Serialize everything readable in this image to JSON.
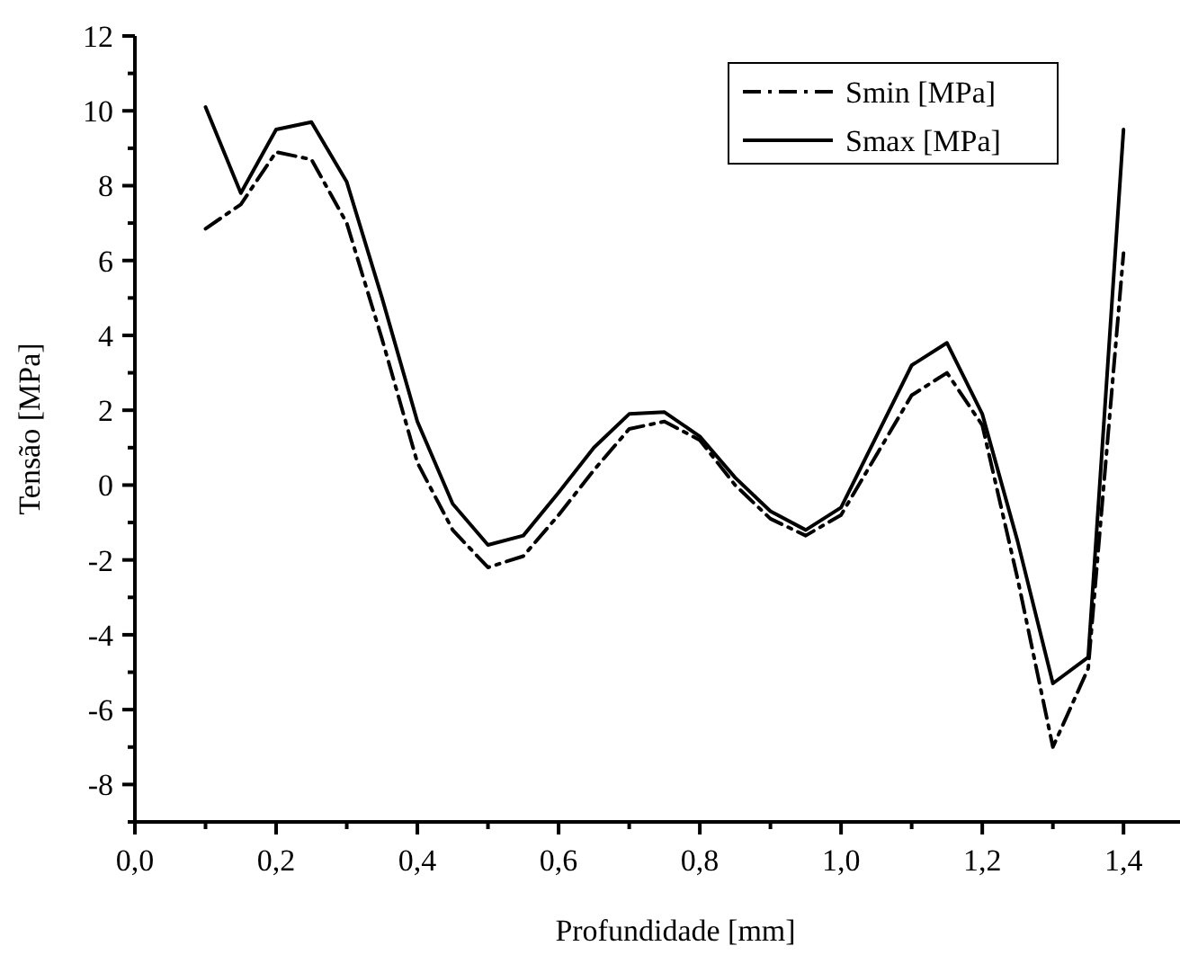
{
  "chart_data": {
    "type": "line",
    "xlabel": "Profundidade [mm]",
    "ylabel": "Tensão [MPa]",
    "xlim": [
      0,
      1.48
    ],
    "ylim": [
      -9,
      12
    ],
    "xticks": [
      {
        "value": 0,
        "label": "0,0"
      },
      {
        "value": 0.1,
        "label": null
      },
      {
        "value": 0.2,
        "label": "0,2"
      },
      {
        "value": 0.3,
        "label": null
      },
      {
        "value": 0.4,
        "label": "0,4"
      },
      {
        "value": 0.5,
        "label": null
      },
      {
        "value": 0.6,
        "label": "0,6"
      },
      {
        "value": 0.7,
        "label": null
      },
      {
        "value": 0.8,
        "label": "0,8"
      },
      {
        "value": 0.9,
        "label": null
      },
      {
        "value": 1.0,
        "label": "1,0"
      },
      {
        "value": 1.1,
        "label": null
      },
      {
        "value": 1.2,
        "label": "1,2"
      },
      {
        "value": 1.3,
        "label": null
      },
      {
        "value": 1.4,
        "label": "1,4"
      }
    ],
    "yticks": [
      {
        "value": -9,
        "label": null
      },
      -8,
      {
        "value": -7,
        "label": null
      },
      -6,
      {
        "value": -5,
        "label": null
      },
      -4,
      {
        "value": -3,
        "label": null
      },
      -2,
      {
        "value": -1,
        "label": null
      },
      0,
      {
        "value": 1,
        "label": null
      },
      2,
      {
        "value": 3,
        "label": null
      },
      4,
      {
        "value": 5,
        "label": null
      },
      6,
      {
        "value": 7,
        "label": null
      },
      8,
      {
        "value": 9,
        "label": null
      },
      10,
      {
        "value": 11,
        "label": null
      },
      12
    ],
    "x": [
      0.1,
      0.15,
      0.2,
      0.25,
      0.3,
      0.35,
      0.4,
      0.45,
      0.5,
      0.55,
      0.6,
      0.65,
      0.7,
      0.75,
      0.8,
      0.85,
      0.9,
      0.95,
      1.0,
      1.05,
      1.1,
      1.15,
      1.2,
      1.25,
      1.3,
      1.35,
      1.4
    ],
    "legend": "top right",
    "grid": false,
    "marker": "none",
    "series": [
      {
        "name": "Smin [MPa]",
        "color": "#000000",
        "line_style": "dashdot",
        "values": [
          6.85,
          7.5,
          8.9,
          8.7,
          7.0,
          3.9,
          0.6,
          -1.2,
          -2.2,
          -1.9,
          -0.8,
          0.4,
          1.5,
          1.7,
          1.2,
          0.0,
          -0.9,
          -1.35,
          -0.8,
          0.8,
          2.4,
          3.0,
          1.6,
          -2.5,
          -7.0,
          -4.9,
          6.2
        ]
      },
      {
        "name": "Smax [MPa]",
        "color": "#000000",
        "line_style": "solid",
        "values": [
          10.1,
          7.8,
          9.5,
          9.7,
          8.1,
          5.0,
          1.7,
          -0.5,
          -1.6,
          -1.35,
          -0.2,
          1.0,
          1.9,
          1.95,
          1.3,
          0.2,
          -0.7,
          -1.2,
          -0.6,
          1.3,
          3.2,
          3.8,
          1.9,
          -1.5,
          -5.3,
          -4.6,
          9.5
        ]
      }
    ]
  }
}
